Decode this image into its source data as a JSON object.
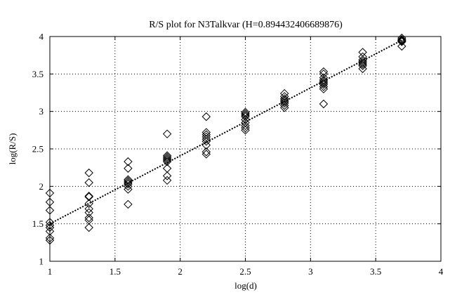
{
  "chart_data": {
    "type": "scatter",
    "title": "R/S plot for N3Talkvar (H=0.894432406689876)",
    "xlabel": "log(d)",
    "ylabel": "log(R/S)",
    "xlim": [
      1,
      4
    ],
    "ylim": [
      1,
      4
    ],
    "x_ticks": [
      "1",
      "1.5",
      "2",
      "2.5",
      "3",
      "3.5",
      "4"
    ],
    "y_ticks": [
      "1",
      "1.5",
      "2",
      "2.5",
      "3",
      "3.5",
      "4"
    ],
    "grid": true,
    "legend": "none",
    "marker": "diamond-open",
    "series": [
      {
        "values": [
          {
            "x": 1.0,
            "y": 1.91
          },
          {
            "x": 1.0,
            "y": 1.79
          },
          {
            "x": 1.0,
            "y": 1.68
          },
          {
            "x": 1.0,
            "y": 1.52
          },
          {
            "x": 1.0,
            "y": 1.48
          },
          {
            "x": 1.0,
            "y": 1.45
          },
          {
            "x": 1.0,
            "y": 1.4
          },
          {
            "x": 1.0,
            "y": 1.31
          },
          {
            "x": 1.0,
            "y": 1.28
          },
          {
            "x": 1.3,
            "y": 2.18
          },
          {
            "x": 1.3,
            "y": 2.05
          },
          {
            "x": 1.3,
            "y": 1.87
          },
          {
            "x": 1.3,
            "y": 1.86
          },
          {
            "x": 1.3,
            "y": 1.77
          },
          {
            "x": 1.3,
            "y": 1.7
          },
          {
            "x": 1.3,
            "y": 1.65
          },
          {
            "x": 1.3,
            "y": 1.58
          },
          {
            "x": 1.3,
            "y": 1.55
          },
          {
            "x": 1.3,
            "y": 1.45
          },
          {
            "x": 1.6,
            "y": 2.33
          },
          {
            "x": 1.6,
            "y": 2.24
          },
          {
            "x": 1.6,
            "y": 2.09
          },
          {
            "x": 1.6,
            "y": 2.07
          },
          {
            "x": 1.6,
            "y": 2.05
          },
          {
            "x": 1.6,
            "y": 2.03
          },
          {
            "x": 1.6,
            "y": 2.0
          },
          {
            "x": 1.6,
            "y": 1.96
          },
          {
            "x": 1.6,
            "y": 1.76
          },
          {
            "x": 1.9,
            "y": 2.7
          },
          {
            "x": 1.9,
            "y": 2.41
          },
          {
            "x": 1.9,
            "y": 2.39
          },
          {
            "x": 1.9,
            "y": 2.37
          },
          {
            "x": 1.9,
            "y": 2.35
          },
          {
            "x": 1.9,
            "y": 2.33
          },
          {
            "x": 1.9,
            "y": 2.24
          },
          {
            "x": 1.9,
            "y": 2.14
          },
          {
            "x": 1.9,
            "y": 2.08
          },
          {
            "x": 2.2,
            "y": 2.93
          },
          {
            "x": 2.2,
            "y": 2.72
          },
          {
            "x": 2.2,
            "y": 2.69
          },
          {
            "x": 2.2,
            "y": 2.66
          },
          {
            "x": 2.2,
            "y": 2.63
          },
          {
            "x": 2.2,
            "y": 2.6
          },
          {
            "x": 2.2,
            "y": 2.55
          },
          {
            "x": 2.2,
            "y": 2.46
          },
          {
            "x": 2.2,
            "y": 2.43
          },
          {
            "x": 2.5,
            "y": 2.99
          },
          {
            "x": 2.5,
            "y": 2.97
          },
          {
            "x": 2.5,
            "y": 2.95
          },
          {
            "x": 2.5,
            "y": 2.93
          },
          {
            "x": 2.5,
            "y": 2.89
          },
          {
            "x": 2.5,
            "y": 2.85
          },
          {
            "x": 2.5,
            "y": 2.81
          },
          {
            "x": 2.5,
            "y": 2.78
          },
          {
            "x": 2.5,
            "y": 2.75
          },
          {
            "x": 2.8,
            "y": 3.24
          },
          {
            "x": 2.8,
            "y": 3.2
          },
          {
            "x": 2.8,
            "y": 3.17
          },
          {
            "x": 2.8,
            "y": 3.15
          },
          {
            "x": 2.8,
            "y": 3.13
          },
          {
            "x": 2.8,
            "y": 3.11
          },
          {
            "x": 2.8,
            "y": 3.08
          },
          {
            "x": 2.8,
            "y": 3.05
          },
          {
            "x": 3.1,
            "y": 3.53
          },
          {
            "x": 3.1,
            "y": 3.5
          },
          {
            "x": 3.1,
            "y": 3.45
          },
          {
            "x": 3.1,
            "y": 3.42
          },
          {
            "x": 3.1,
            "y": 3.4
          },
          {
            "x": 3.1,
            "y": 3.38
          },
          {
            "x": 3.1,
            "y": 3.36
          },
          {
            "x": 3.1,
            "y": 3.33
          },
          {
            "x": 3.1,
            "y": 3.3
          },
          {
            "x": 3.1,
            "y": 3.1
          },
          {
            "x": 3.4,
            "y": 3.79
          },
          {
            "x": 3.4,
            "y": 3.73
          },
          {
            "x": 3.4,
            "y": 3.69
          },
          {
            "x": 3.4,
            "y": 3.67
          },
          {
            "x": 3.4,
            "y": 3.65
          },
          {
            "x": 3.4,
            "y": 3.63
          },
          {
            "x": 3.4,
            "y": 3.61
          },
          {
            "x": 3.4,
            "y": 3.57
          },
          {
            "x": 3.7,
            "y": 3.98
          },
          {
            "x": 3.7,
            "y": 3.96
          },
          {
            "x": 3.7,
            "y": 3.95
          },
          {
            "x": 3.7,
            "y": 3.94
          },
          {
            "x": 3.7,
            "y": 3.93
          },
          {
            "x": 3.7,
            "y": 3.87
          }
        ]
      }
    ],
    "fit_line": {
      "style": "dotted",
      "points": [
        {
          "x": 1.0,
          "y": 1.5
        },
        {
          "x": 3.7,
          "y": 3.95
        }
      ]
    }
  }
}
